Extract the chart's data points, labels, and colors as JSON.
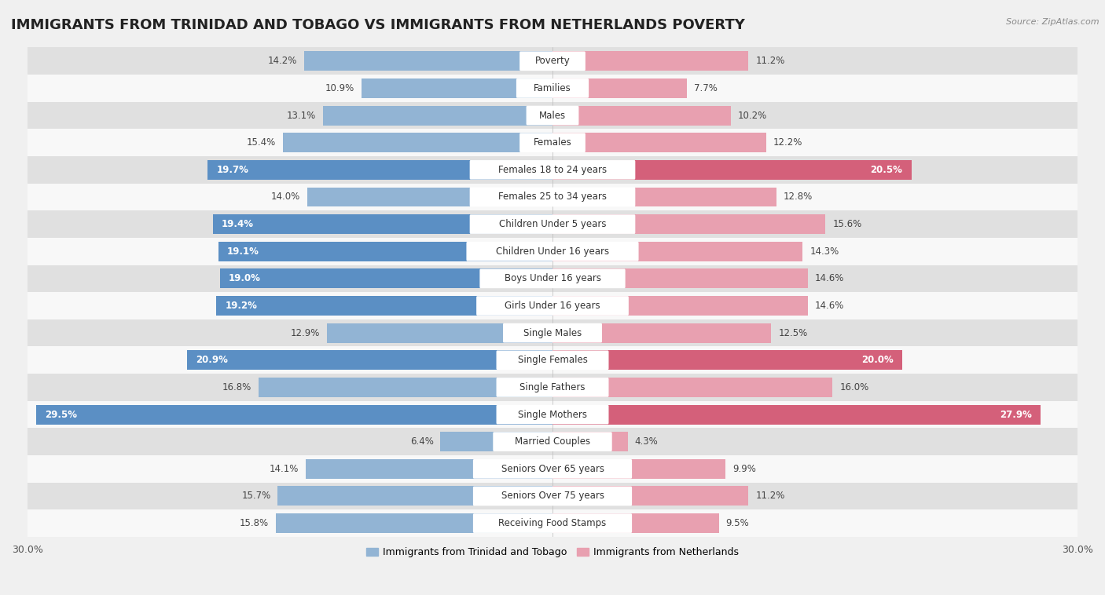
{
  "title": "IMMIGRANTS FROM TRINIDAD AND TOBAGO VS IMMIGRANTS FROM NETHERLANDS POVERTY",
  "source": "Source: ZipAtlas.com",
  "categories": [
    "Poverty",
    "Families",
    "Males",
    "Females",
    "Females 18 to 24 years",
    "Females 25 to 34 years",
    "Children Under 5 years",
    "Children Under 16 years",
    "Boys Under 16 years",
    "Girls Under 16 years",
    "Single Males",
    "Single Females",
    "Single Fathers",
    "Single Mothers",
    "Married Couples",
    "Seniors Over 65 years",
    "Seniors Over 75 years",
    "Receiving Food Stamps"
  ],
  "left_values": [
    14.2,
    10.9,
    13.1,
    15.4,
    19.7,
    14.0,
    19.4,
    19.1,
    19.0,
    19.2,
    12.9,
    20.9,
    16.8,
    29.5,
    6.4,
    14.1,
    15.7,
    15.8
  ],
  "right_values": [
    11.2,
    7.7,
    10.2,
    12.2,
    20.5,
    12.8,
    15.6,
    14.3,
    14.6,
    14.6,
    12.5,
    20.0,
    16.0,
    27.9,
    4.3,
    9.9,
    11.2,
    9.5
  ],
  "left_color": "#92b4d4",
  "right_color": "#e8a0b0",
  "left_highlight_color": "#5b8fc4",
  "right_highlight_color": "#d4607a",
  "highlight_threshold": 19.0,
  "left_label": "Immigrants from Trinidad and Tobago",
  "right_label": "Immigrants from Netherlands",
  "xlim": 30.0,
  "bar_height": 0.72,
  "background_color": "#f0f0f0",
  "row_even_color": "#e0e0e0",
  "row_odd_color": "#f8f8f8",
  "title_fontsize": 13,
  "label_fontsize": 8.5,
  "value_fontsize": 8.5
}
